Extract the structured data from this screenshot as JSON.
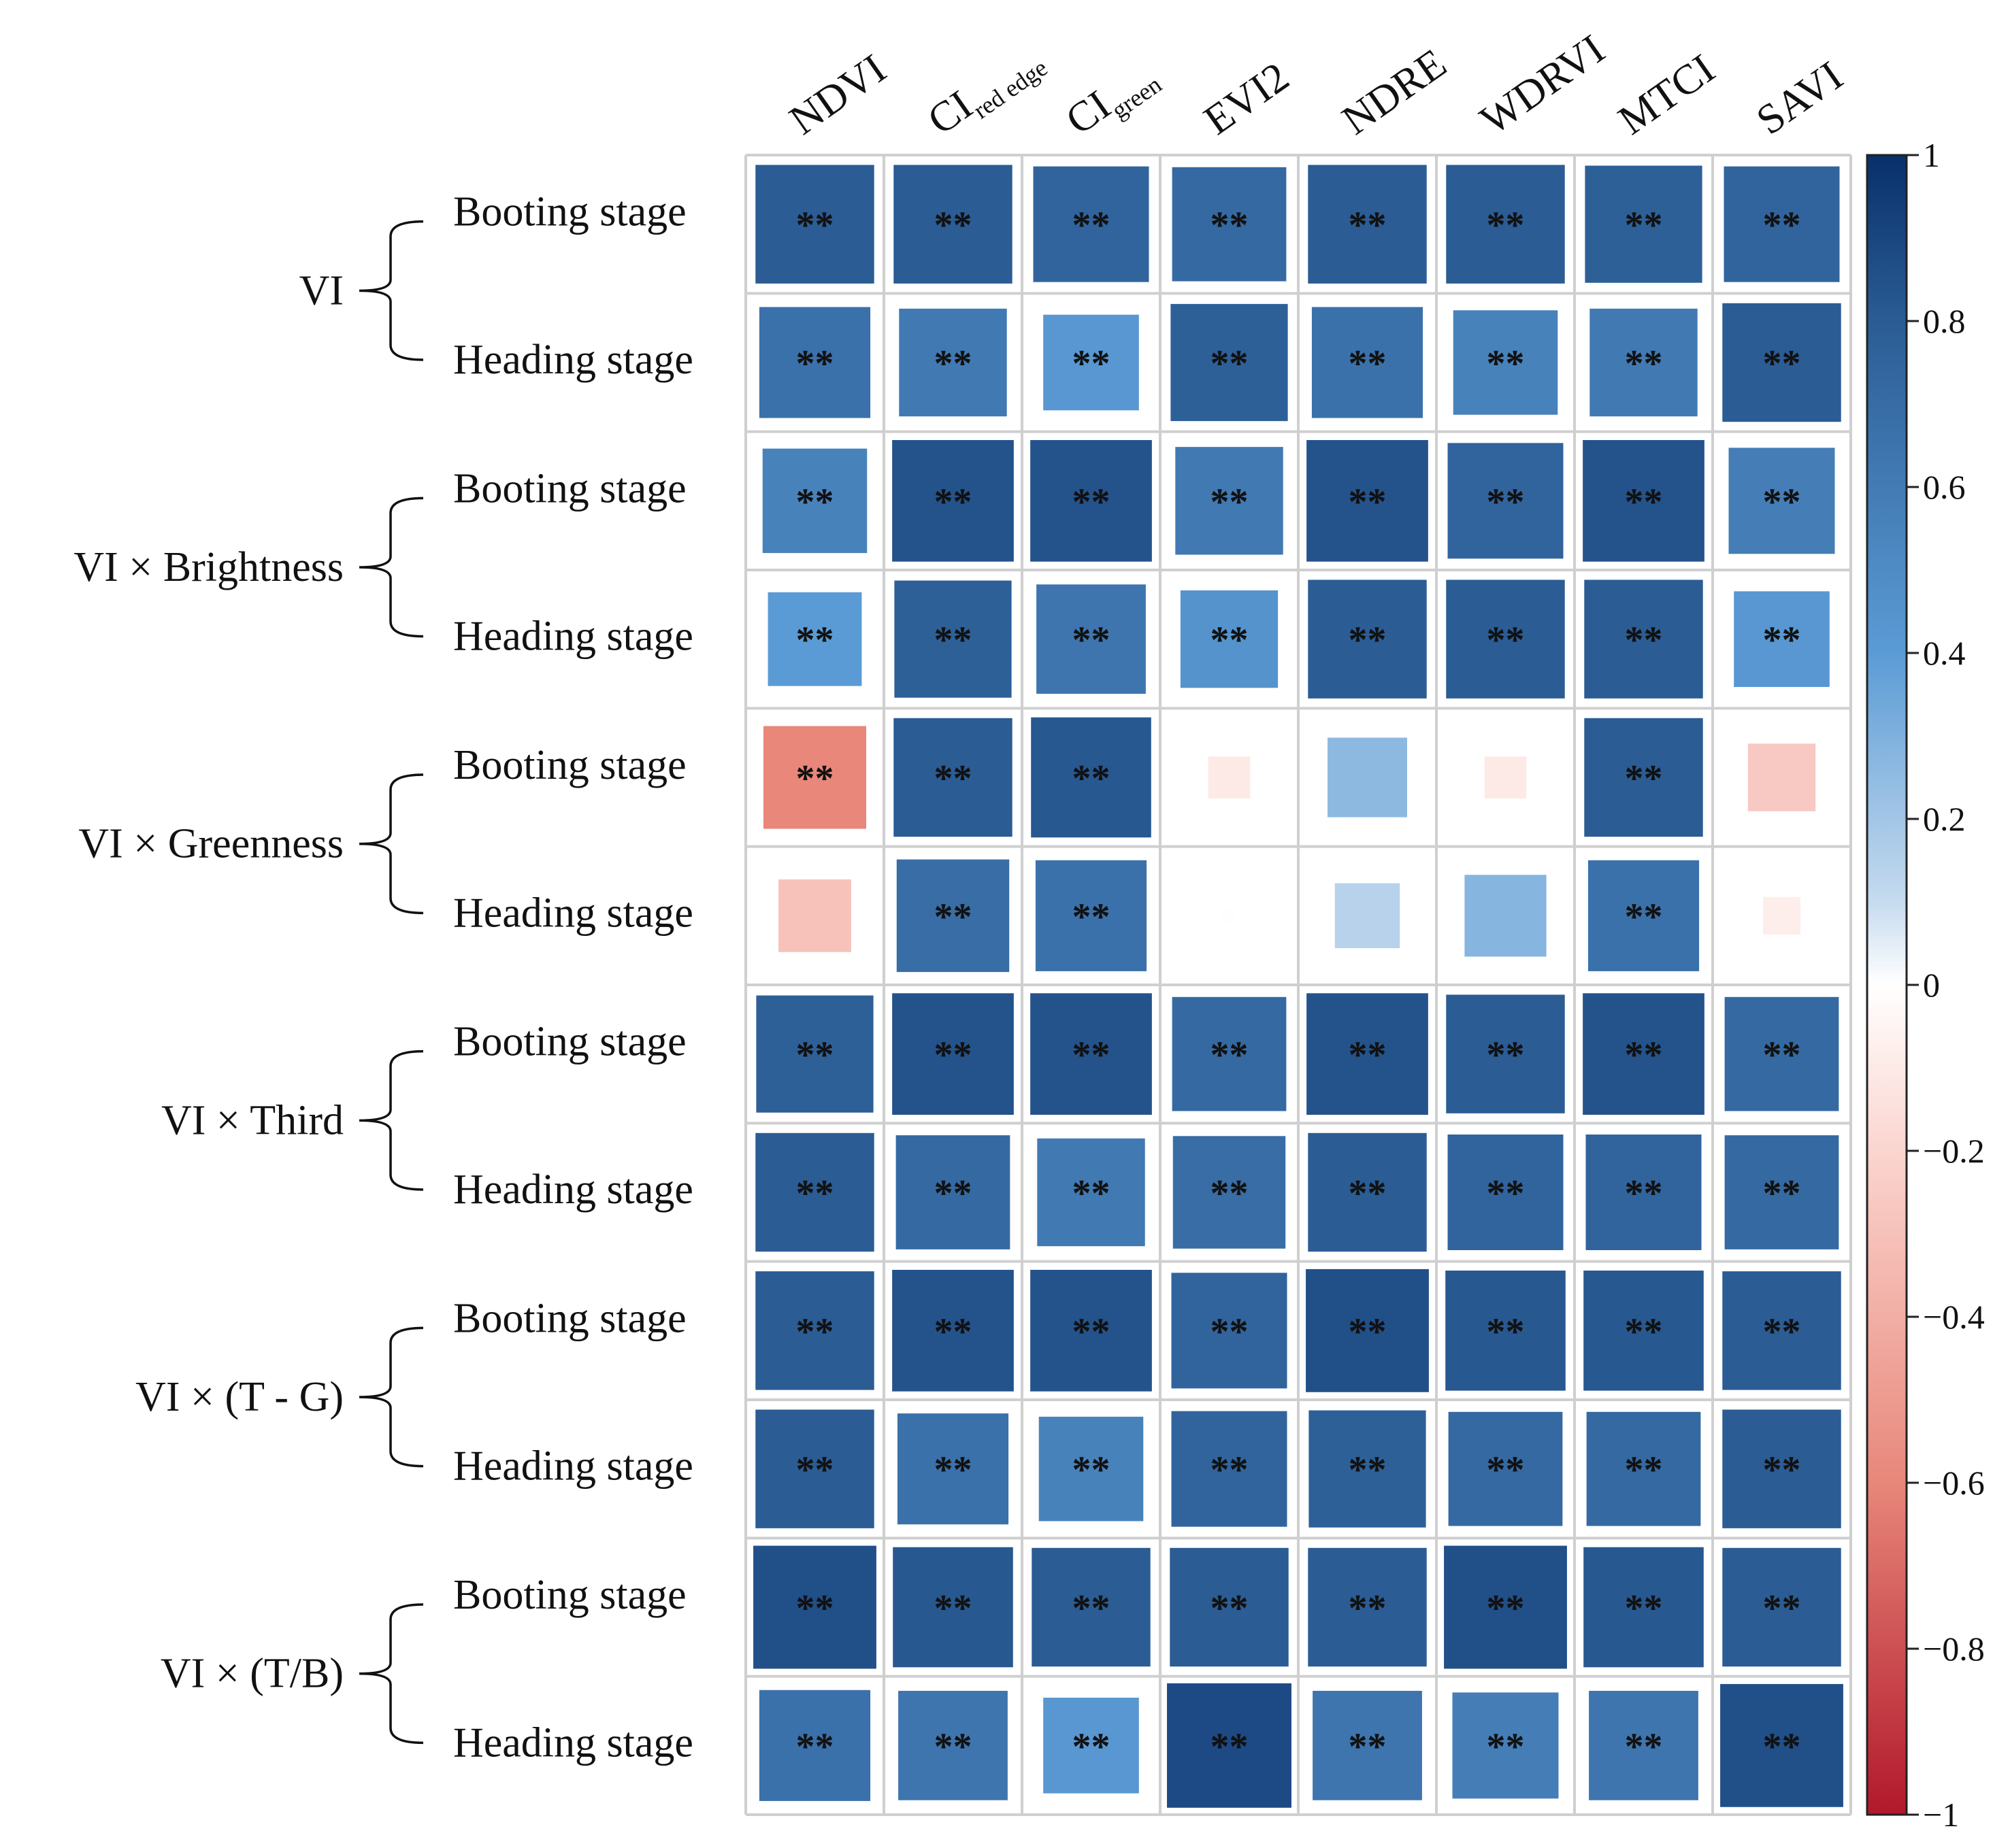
{
  "chart_data": {
    "type": "heatmap",
    "title": "",
    "columns": [
      {
        "main": "NDVI",
        "sub": ""
      },
      {
        "main": "CI",
        "sub": "red edge"
      },
      {
        "main": "CI",
        "sub": "green"
      },
      {
        "main": "EVI2",
        "sub": ""
      },
      {
        "main": "NDRE",
        "sub": ""
      },
      {
        "main": "WDRVI",
        "sub": ""
      },
      {
        "main": "MTCI",
        "sub": ""
      },
      {
        "main": "SAVI",
        "sub": ""
      }
    ],
    "groups": [
      {
        "label": "VI",
        "rows": [
          "Booting stage",
          "Heading stage"
        ]
      },
      {
        "label": "VI × Brightness",
        "rows": [
          "Booting stage",
          "Heading stage"
        ]
      },
      {
        "label": "VI × Greenness",
        "rows": [
          "Booting stage",
          "Heading stage"
        ]
      },
      {
        "label": "VI × Third",
        "rows": [
          "Booting stage",
          "Heading stage"
        ]
      },
      {
        "label": "VI × (T - G)",
        "rows": [
          "Booting stage",
          "Heading stage"
        ]
      },
      {
        "label": "VI × (T/B)",
        "rows": [
          "Booting stage",
          "Heading stage"
        ]
      }
    ],
    "values": [
      [
        0.8,
        0.8,
        0.76,
        0.74,
        0.8,
        0.8,
        0.78,
        0.76
      ],
      [
        0.7,
        0.66,
        0.52,
        0.78,
        0.7,
        0.62,
        0.66,
        0.8
      ],
      [
        0.62,
        0.84,
        0.84,
        0.66,
        0.84,
        0.76,
        0.84,
        0.64
      ],
      [
        0.5,
        0.78,
        0.68,
        0.54,
        0.8,
        0.8,
        0.8,
        0.52
      ],
      [
        -0.6,
        0.8,
        0.82,
        -0.1,
        0.36,
        -0.1,
        0.8,
        -0.26
      ],
      [
        -0.3,
        0.72,
        0.7,
        -0.01,
        0.24,
        0.38,
        0.7,
        -0.08
      ],
      [
        0.78,
        0.84,
        0.84,
        0.74,
        0.84,
        0.8,
        0.84,
        0.74
      ],
      [
        0.8,
        0.74,
        0.66,
        0.72,
        0.8,
        0.76,
        0.76,
        0.74
      ],
      [
        0.8,
        0.84,
        0.84,
        0.76,
        0.86,
        0.82,
        0.82,
        0.8
      ],
      [
        0.8,
        0.7,
        0.62,
        0.76,
        0.78,
        0.74,
        0.74,
        0.8
      ],
      [
        0.86,
        0.82,
        0.8,
        0.8,
        0.8,
        0.86,
        0.82,
        0.8
      ],
      [
        0.7,
        0.68,
        0.52,
        0.88,
        0.68,
        0.64,
        0.68,
        0.86
      ]
    ],
    "significance": [
      [
        "**",
        "**",
        "**",
        "**",
        "**",
        "**",
        "**",
        "**"
      ],
      [
        "**",
        "**",
        "**",
        "**",
        "**",
        "**",
        "**",
        "**"
      ],
      [
        "**",
        "**",
        "**",
        "**",
        "**",
        "**",
        "**",
        "**"
      ],
      [
        "**",
        "**",
        "**",
        "**",
        "**",
        "**",
        "**",
        "**"
      ],
      [
        "**",
        "**",
        "**",
        "",
        "",
        "",
        "**",
        ""
      ],
      [
        "",
        "**",
        "**",
        "",
        "",
        "",
        "**",
        ""
      ],
      [
        "**",
        "**",
        "**",
        "**",
        "**",
        "**",
        "**",
        "**"
      ],
      [
        "**",
        "**",
        "**",
        "**",
        "**",
        "**",
        "**",
        "**"
      ],
      [
        "**",
        "**",
        "**",
        "**",
        "**",
        "**",
        "**",
        "**"
      ],
      [
        "**",
        "**",
        "**",
        "**",
        "**",
        "**",
        "**",
        "**"
      ],
      [
        "**",
        "**",
        "**",
        "**",
        "**",
        "**",
        "**",
        "**"
      ],
      [
        "**",
        "**",
        "**",
        "**",
        "**",
        "**",
        "**",
        "**"
      ]
    ],
    "colorbar": {
      "range": [
        -1,
        1
      ],
      "ticks": [
        "1",
        "0.8",
        "0.6",
        "0.4",
        "0.2",
        "0",
        "−0.2",
        "−0.4",
        "−0.6",
        "−0.8",
        "−1"
      ],
      "colors": {
        "max": "#08306b",
        "pos_high": "#2b5c94",
        "pos_mid": "#5b9bd5",
        "pos_low": "#c6dbef",
        "zero": "#ffffff",
        "neg_low": "#fbd5cf",
        "neg_mid": "#e8877a",
        "min": "#b2182b"
      }
    }
  }
}
